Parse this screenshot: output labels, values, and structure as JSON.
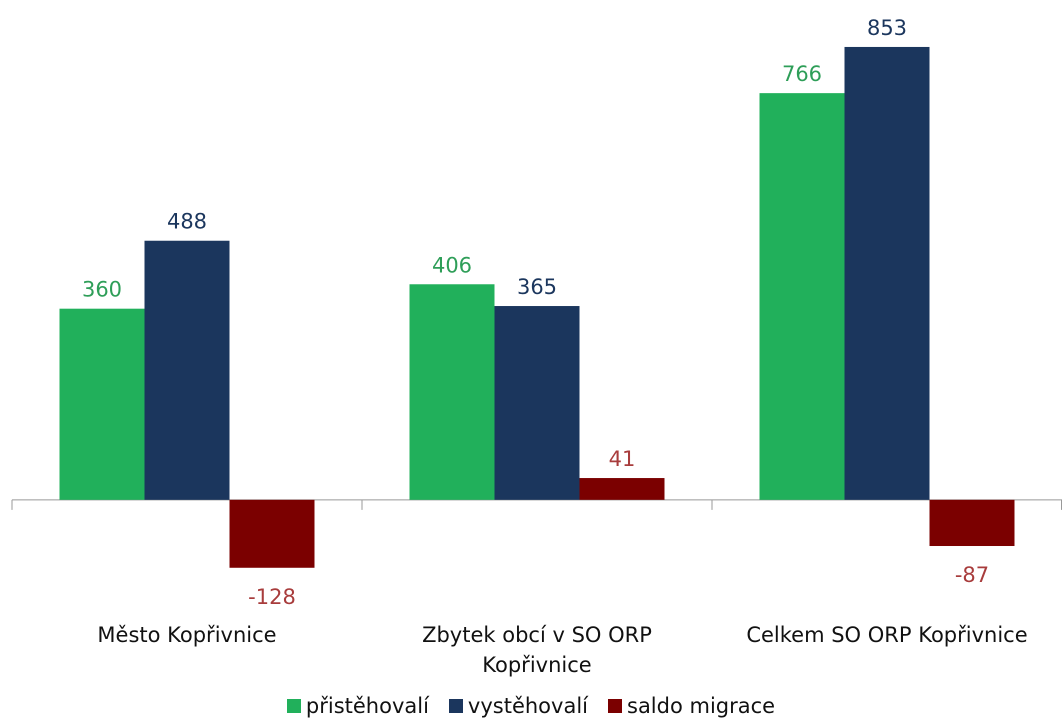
{
  "chart_data": {
    "type": "bar",
    "categories": [
      "Město Kopřivnice",
      "Zbytek obcí v SO ORP Kopřivnice",
      "Celkem SO ORP Kopřivnice"
    ],
    "series": [
      {
        "name": "přistěhovalí",
        "color": "#21b05b",
        "values": [
          360,
          406,
          766
        ]
      },
      {
        "name": "vystěhovalí",
        "color": "#1b365d",
        "values": [
          488,
          365,
          853
        ]
      },
      {
        "name": "saldo migrace",
        "color": "#7b0000",
        "values": [
          -128,
          41,
          -87
        ]
      }
    ],
    "label_colors": [
      "#2e9e58",
      "#1b365d",
      "#a83c3c"
    ],
    "ylim": [
      -200,
      900
    ],
    "legend": "bottom"
  }
}
